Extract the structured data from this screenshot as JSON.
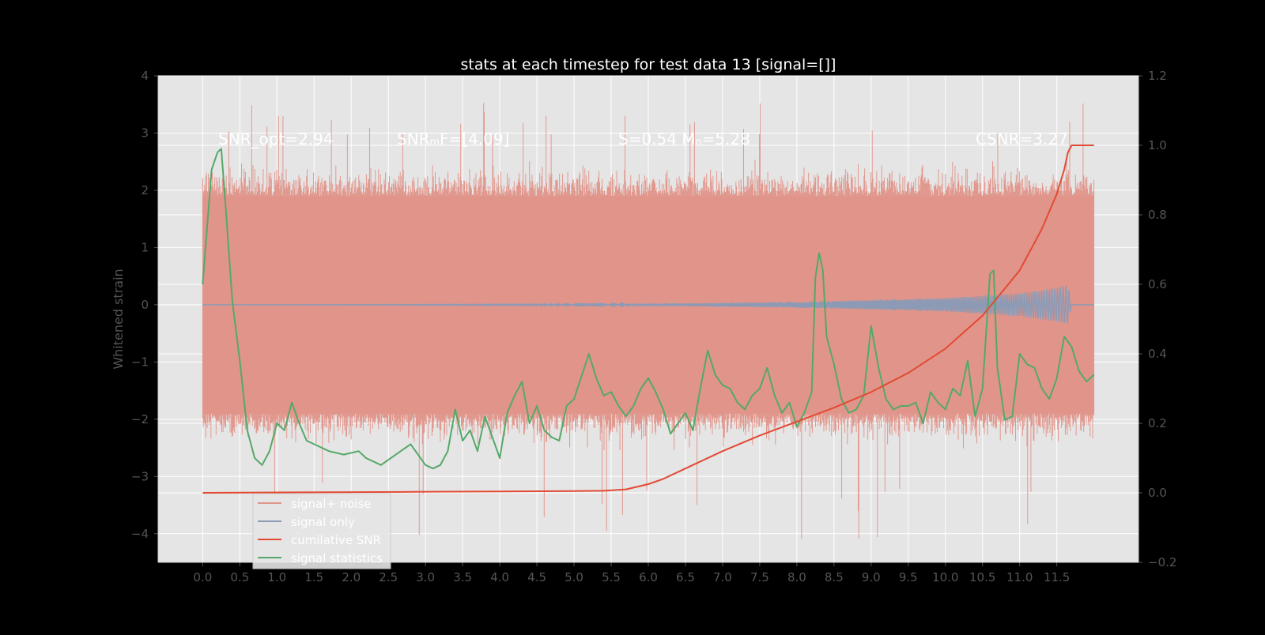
{
  "chart_data": {
    "type": "line",
    "title": "stats at each timestep for test data 13 [signal=[]]",
    "ylabel": "Whitened strain",
    "xlabel": "",
    "xlim": [
      -0.6,
      12.6
    ],
    "ylim": [
      -4.5,
      4.0
    ],
    "ylim_right": [
      -0.2,
      1.2
    ],
    "x_ticks": [
      "0.0",
      "0.5",
      "1.0",
      "1.5",
      "2.0",
      "2.5",
      "3.0",
      "3.5",
      "4.0",
      "4.5",
      "5.0",
      "5.5",
      "6.0",
      "6.5",
      "7.0",
      "7.5",
      "8.0",
      "8.5",
      "9.0",
      "9.5",
      "10.0",
      "10.5",
      "11.0",
      "11.5"
    ],
    "x_tick_values": [
      0.0,
      0.5,
      1.0,
      1.5,
      2.0,
      2.5,
      3.0,
      3.5,
      4.0,
      4.5,
      5.0,
      5.5,
      6.0,
      6.5,
      7.0,
      7.5,
      8.0,
      8.5,
      9.0,
      9.5,
      10.0,
      10.5,
      11.0,
      11.5
    ],
    "y_ticks": [
      "4",
      "3",
      "2",
      "1",
      "0",
      "−1",
      "−2",
      "−3",
      "−4"
    ],
    "y_tick_values": [
      4,
      3,
      2,
      1,
      0,
      -1,
      -2,
      -3,
      -4
    ],
    "y_right_ticks": [
      "1.2",
      "1.0",
      "0.8",
      "0.6",
      "0.4",
      "0.2",
      "0.0",
      "−0.2"
    ],
    "y_right_tick_values": [
      1.2,
      1.0,
      0.8,
      0.6,
      0.4,
      0.2,
      0.0,
      -0.2
    ],
    "annotations": {
      "snr_opt": "SNR_opt=2.94",
      "snr_mf": "SNRₘF=[4.09]",
      "s_m": "S=0.54  Mₙ=5.28",
      "csnr": "CSNR=3.27"
    },
    "legend": {
      "placement": "lower-left",
      "entries": [
        "signal+ noise",
        "signal only",
        "cumilative SNR",
        "signal statistics"
      ]
    },
    "colors": {
      "figure_bg": "#000000",
      "axes_bg": "#e5e5e5",
      "grid": "#ffffff",
      "tick_label": "#555555",
      "title": "#ffffff",
      "signal_noise": "#e0958a",
      "signal_only": "#8d9ab5",
      "cumulative_snr": "#e24a33",
      "signal_statistics": "#55a868"
    },
    "series": [
      {
        "name": "signal+ noise",
        "axis": "left",
        "kind": "noise_band",
        "x_range": [
          0.0,
          12.0
        ],
        "band_low": -1.9,
        "band_high": 1.9,
        "spike_min": -4.1,
        "spike_max": 3.6
      },
      {
        "name": "signal only",
        "axis": "left",
        "kind": "chirp",
        "x_range": [
          0.0,
          11.7
        ],
        "envelope": [
          [
            0.0,
            0.0
          ],
          [
            5.5,
            0.01
          ],
          [
            8.0,
            0.05
          ],
          [
            10.0,
            0.12
          ],
          [
            11.0,
            0.2
          ],
          [
            11.5,
            0.3
          ],
          [
            11.65,
            0.35
          ],
          [
            11.7,
            0.0
          ]
        ]
      },
      {
        "name": "cumilative SNR",
        "axis": "right",
        "x": [
          0.0,
          1.0,
          2.0,
          3.0,
          4.0,
          5.0,
          5.4,
          5.7,
          6.0,
          6.2,
          6.5,
          7.0,
          7.5,
          8.0,
          8.5,
          9.0,
          9.5,
          10.0,
          10.5,
          11.0,
          11.3,
          11.5,
          11.6,
          11.65,
          11.7,
          12.0
        ],
        "y": [
          0.0,
          0.001,
          0.002,
          0.003,
          0.004,
          0.005,
          0.006,
          0.01,
          0.025,
          0.04,
          0.07,
          0.12,
          0.165,
          0.205,
          0.245,
          0.29,
          0.345,
          0.415,
          0.51,
          0.64,
          0.76,
          0.86,
          0.93,
          0.98,
          1.0,
          1.0
        ]
      },
      {
        "name": "signal statistics",
        "axis": "right",
        "x": [
          0.0,
          0.12,
          0.2,
          0.25,
          0.3,
          0.4,
          0.5,
          0.55,
          0.6,
          0.7,
          0.8,
          0.9,
          1.0,
          1.1,
          1.2,
          1.3,
          1.4,
          1.5,
          1.7,
          1.9,
          2.1,
          2.2,
          2.4,
          2.6,
          2.8,
          3.0,
          3.1,
          3.2,
          3.3,
          3.4,
          3.5,
          3.6,
          3.7,
          3.8,
          3.9,
          4.0,
          4.1,
          4.2,
          4.3,
          4.4,
          4.5,
          4.6,
          4.7,
          4.8,
          4.9,
          5.0,
          5.2,
          5.3,
          5.4,
          5.5,
          5.6,
          5.7,
          5.8,
          5.9,
          6.0,
          6.1,
          6.2,
          6.3,
          6.4,
          6.5,
          6.6,
          6.7,
          6.8,
          6.9,
          7.0,
          7.1,
          7.2,
          7.3,
          7.4,
          7.5,
          7.6,
          7.7,
          7.8,
          7.9,
          8.0,
          8.1,
          8.2,
          8.25,
          8.3,
          8.35,
          8.4,
          8.5,
          8.6,
          8.7,
          8.8,
          8.9,
          9.0,
          9.1,
          9.2,
          9.3,
          9.4,
          9.5,
          9.6,
          9.7,
          9.8,
          9.9,
          10.0,
          10.1,
          10.2,
          10.3,
          10.4,
          10.5,
          10.6,
          10.65,
          10.7,
          10.8,
          10.9,
          11.0,
          11.1,
          11.2,
          11.3,
          11.4,
          11.5,
          11.6,
          11.7,
          11.8,
          11.9,
          12.0
        ],
        "y": [
          0.6,
          0.93,
          0.98,
          0.99,
          0.85,
          0.55,
          0.38,
          0.28,
          0.18,
          0.1,
          0.08,
          0.12,
          0.2,
          0.18,
          0.26,
          0.2,
          0.15,
          0.14,
          0.12,
          0.11,
          0.12,
          0.1,
          0.08,
          0.11,
          0.14,
          0.08,
          0.07,
          0.08,
          0.12,
          0.24,
          0.15,
          0.18,
          0.12,
          0.22,
          0.16,
          0.1,
          0.23,
          0.28,
          0.32,
          0.2,
          0.25,
          0.18,
          0.16,
          0.15,
          0.25,
          0.27,
          0.4,
          0.33,
          0.28,
          0.29,
          0.25,
          0.22,
          0.25,
          0.3,
          0.33,
          0.29,
          0.24,
          0.17,
          0.2,
          0.23,
          0.18,
          0.3,
          0.41,
          0.34,
          0.31,
          0.3,
          0.26,
          0.24,
          0.28,
          0.3,
          0.36,
          0.28,
          0.23,
          0.26,
          0.19,
          0.23,
          0.29,
          0.62,
          0.69,
          0.64,
          0.45,
          0.37,
          0.27,
          0.23,
          0.24,
          0.28,
          0.48,
          0.36,
          0.27,
          0.24,
          0.25,
          0.25,
          0.26,
          0.2,
          0.29,
          0.26,
          0.24,
          0.3,
          0.28,
          0.38,
          0.22,
          0.3,
          0.63,
          0.64,
          0.36,
          0.21,
          0.22,
          0.4,
          0.37,
          0.36,
          0.3,
          0.27,
          0.33,
          0.45,
          0.42,
          0.35,
          0.32,
          0.34
        ]
      }
    ]
  }
}
